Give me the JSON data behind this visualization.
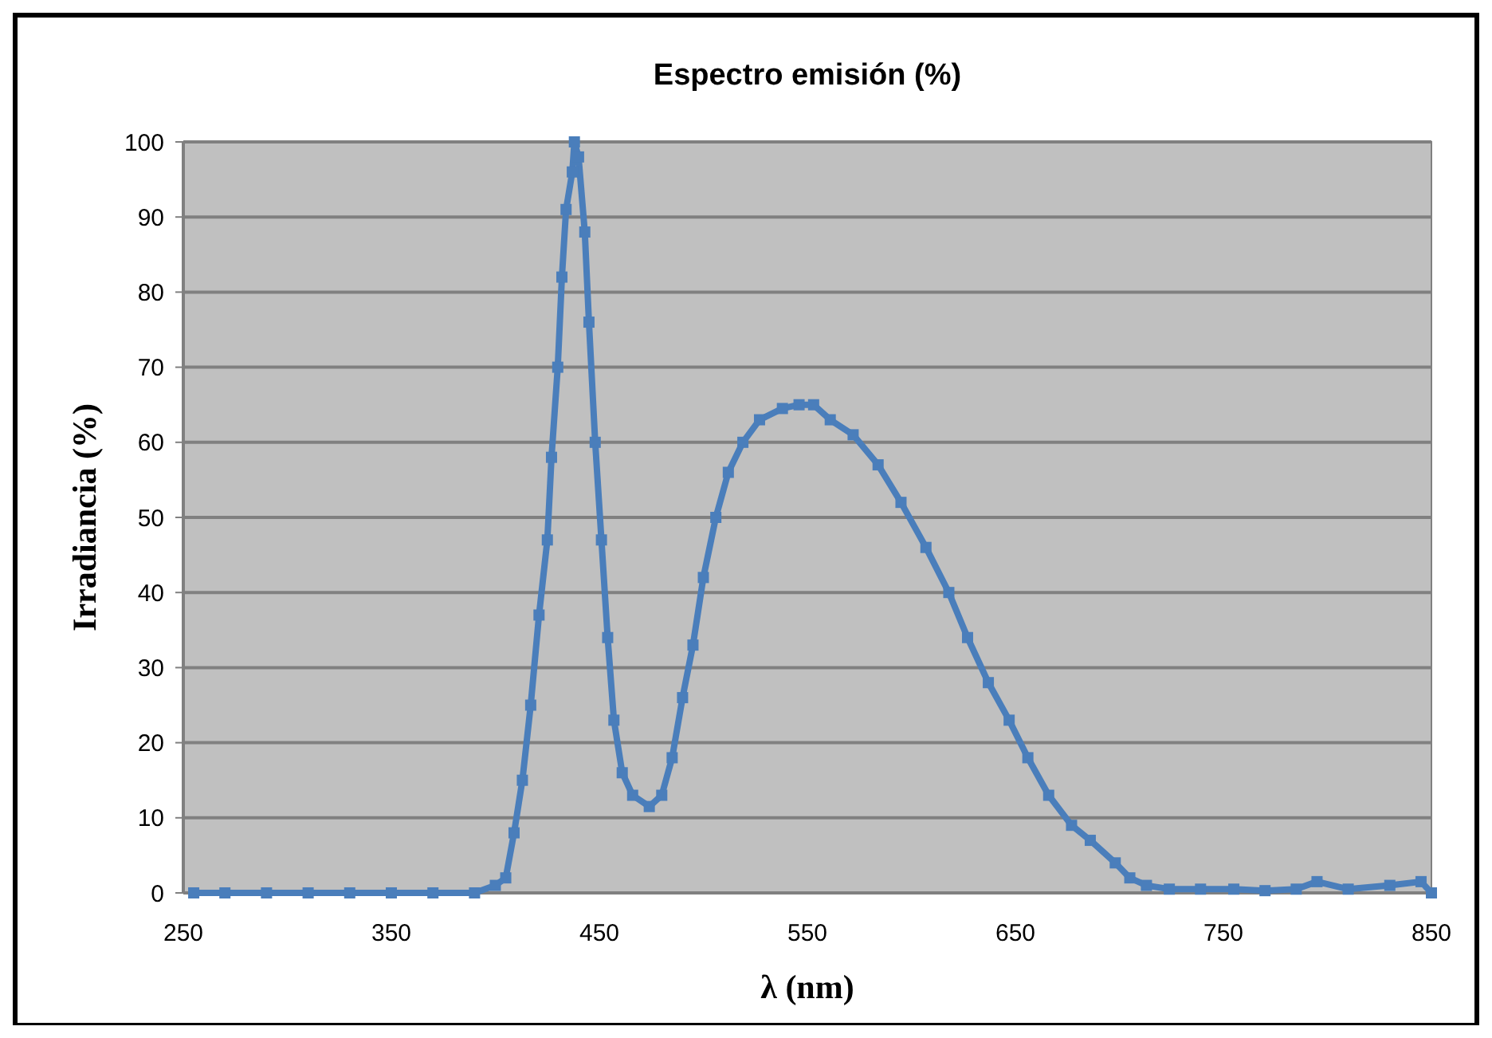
{
  "chart_data": {
    "type": "line",
    "title": "Espectro emisión (%)",
    "xlabel": "λ (nm)",
    "ylabel": "Irradiancia (%)",
    "xlim": [
      250,
      850
    ],
    "xticks": [
      250,
      350,
      450,
      550,
      650,
      750,
      850
    ],
    "ylim": [
      0,
      100
    ],
    "yticks": [
      0,
      10,
      20,
      30,
      40,
      50,
      60,
      70,
      80,
      90,
      100
    ],
    "grid": "y",
    "marker": "square",
    "line_style": "solid",
    "series": [
      {
        "color": "#4a7ebb",
        "x": [
          255,
          270,
          290,
          310,
          330,
          350,
          370,
          390,
          400,
          405,
          409,
          413,
          417,
          421,
          425,
          427,
          430,
          432,
          434,
          437,
          438,
          440,
          443,
          445,
          448,
          451,
          454,
          457,
          461,
          466,
          474,
          480,
          485,
          490,
          495,
          500,
          506,
          512,
          519,
          527,
          538,
          546,
          553,
          561,
          572,
          584,
          595,
          607,
          618,
          627,
          637,
          647,
          656,
          666,
          677,
          686,
          698,
          705,
          713,
          724,
          739,
          755,
          770,
          785,
          795,
          810,
          830,
          845,
          850
        ],
        "values": [
          0,
          0,
          0,
          0,
          0,
          0,
          0,
          0,
          1,
          2,
          8,
          15,
          25,
          37,
          47,
          58,
          70,
          82,
          91,
          96,
          100,
          98,
          88,
          76,
          60,
          47,
          34,
          23,
          16,
          13,
          11.5,
          13,
          18,
          26,
          33,
          42,
          50,
          56,
          60,
          63,
          64.5,
          65,
          65,
          63,
          61,
          57,
          52,
          46,
          40,
          34,
          28,
          23,
          18,
          13,
          9,
          7,
          4,
          2,
          1,
          0.5,
          0.5,
          0.5,
          0.3,
          0.5,
          1.5,
          0.5,
          1,
          1.5,
          0
        ]
      }
    ]
  }
}
